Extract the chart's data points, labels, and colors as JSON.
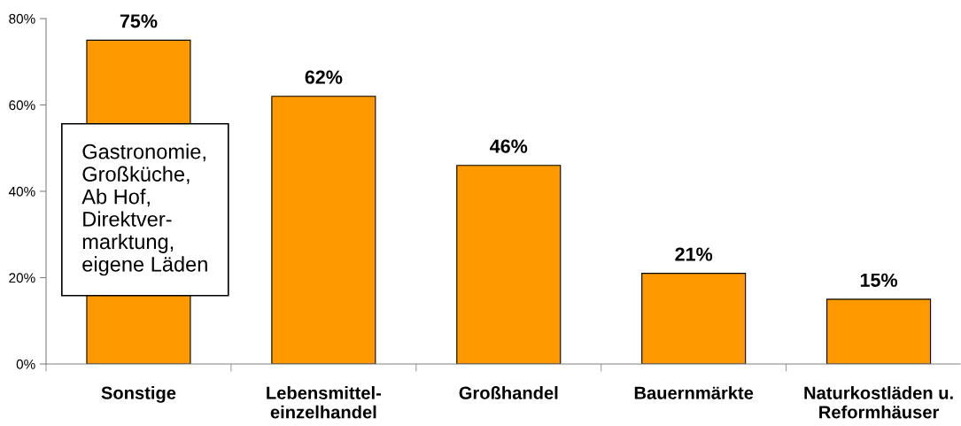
{
  "chart_data": {
    "type": "bar",
    "categories": [
      "Sonstige",
      "Lebensmittel-\neinzelhandel",
      "Großhandel",
      "Bauernmärkte",
      "Naturkostläden u.\nReformhäuser"
    ],
    "values": [
      75,
      62,
      46,
      21,
      15
    ],
    "color": "#ff9900",
    "value_labels": [
      "75%",
      "62%",
      "46%",
      "21%",
      "15%"
    ],
    "ylim": [
      0,
      80
    ],
    "yticks": [
      {
        "value": 0,
        "label": "0%"
      },
      {
        "value": 20,
        "label": "20%"
      },
      {
        "value": 40,
        "label": "40%"
      },
      {
        "value": 60,
        "label": "60%"
      },
      {
        "value": 80,
        "label": "80%"
      }
    ],
    "grid": false,
    "legend": false,
    "annotations": [
      "Gastronomie,\nGroßküche,\nAb Hof,\nDirektver-\nmarktung,\neigene Läden"
    ]
  }
}
